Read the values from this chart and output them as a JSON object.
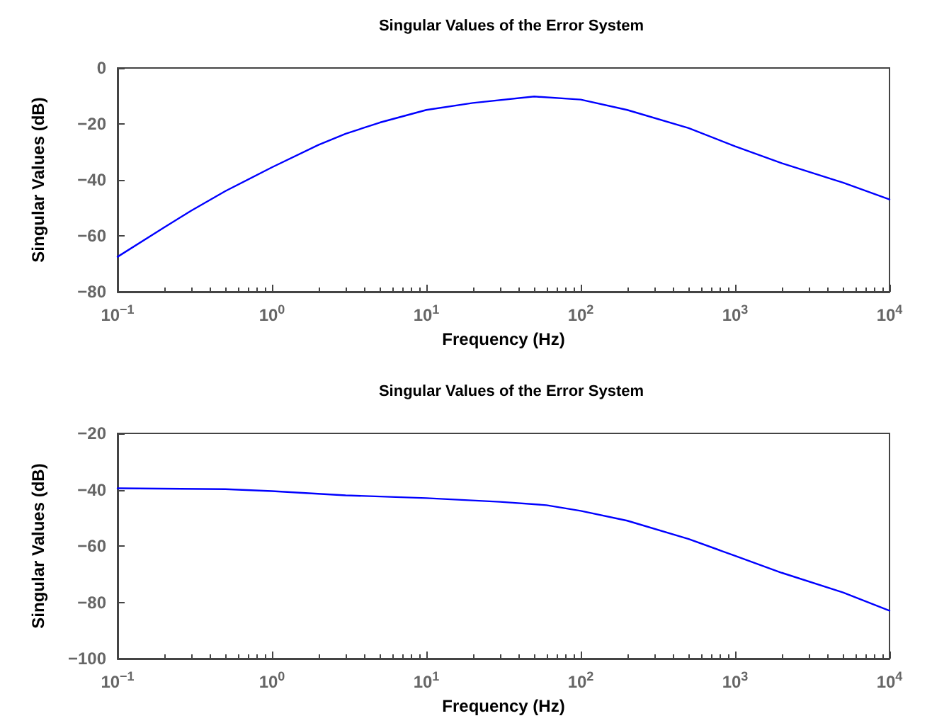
{
  "chart_data": [
    {
      "type": "line",
      "title": "Singular Values of the Error System",
      "xlabel": "Frequency (Hz)",
      "ylabel": "Singular Values (dB)",
      "log": "x",
      "x": [
        0.1,
        0.2,
        0.3,
        0.5,
        1,
        2,
        3,
        5,
        10,
        20,
        50,
        100,
        200,
        500,
        1000,
        2000,
        5000,
        10000
      ],
      "series": [
        {
          "color": "#0000ff",
          "values": [
            -67.5,
            -57,
            -51,
            -44,
            -35.5,
            -27.5,
            -23.5,
            -19.5,
            -15,
            -12.5,
            -10.2,
            -11.3,
            -15,
            -21.5,
            -28,
            -34,
            -41,
            -47
          ]
        }
      ],
      "xlim": [
        0.1,
        10000
      ],
      "xticks": [
        {
          "value": 0.1,
          "label": "10$^{−1}$"
        },
        {
          "value": 1,
          "label": "10$^{0}$"
        },
        {
          "value": 10,
          "label": "10$^{1}$"
        },
        {
          "value": 100,
          "label": "10$^{2}$"
        },
        {
          "value": 1000,
          "label": "10$^{3}$"
        },
        {
          "value": 10000,
          "label": "10$^{4}$"
        }
      ],
      "ylim": [
        -80,
        0
      ],
      "yticks": [
        {
          "value": -80,
          "label": "−80"
        },
        {
          "value": -60,
          "label": "−60"
        },
        {
          "value": -40,
          "label": "−40"
        },
        {
          "value": -20,
          "label": "−20"
        },
        0
      ],
      "grid": false,
      "marker": "none",
      "line_style": "solid"
    },
    {
      "type": "line",
      "title": "Singular Values of the Error System",
      "xlabel": "Frequency (Hz)",
      "ylabel": "Singular Values (dB)",
      "log": "x",
      "x": [
        0.1,
        0.5,
        1,
        3,
        10,
        30,
        60,
        100,
        200,
        500,
        1000,
        2000,
        5000,
        10000
      ],
      "series": [
        {
          "color": "#0000ff",
          "values": [
            -39.5,
            -39.8,
            -40.5,
            -42,
            -43,
            -44.3,
            -45.5,
            -47.5,
            -51,
            -57.5,
            -63.5,
            -69.5,
            -76.5,
            -83
          ]
        }
      ],
      "xlim": [
        0.1,
        10000
      ],
      "xticks": [
        {
          "value": 0.1,
          "label": "10$^{−1}$"
        },
        {
          "value": 1,
          "label": "10$^{0}$"
        },
        {
          "value": 10,
          "label": "10$^{1}$"
        },
        {
          "value": 100,
          "label": "10$^{2}$"
        },
        {
          "value": 1000,
          "label": "10$^{3}$"
        },
        {
          "value": 10000,
          "label": "10$^{4}$"
        }
      ],
      "ylim": [
        -100,
        -20
      ],
      "yticks": [
        {
          "value": -100,
          "label": "−100"
        },
        {
          "value": -80,
          "label": "−80"
        },
        {
          "value": -60,
          "label": "−60"
        },
        {
          "value": -40,
          "label": "−40"
        },
        {
          "value": -20,
          "label": "−20"
        }
      ],
      "grid": false,
      "marker": "none",
      "line_style": "solid"
    }
  ]
}
